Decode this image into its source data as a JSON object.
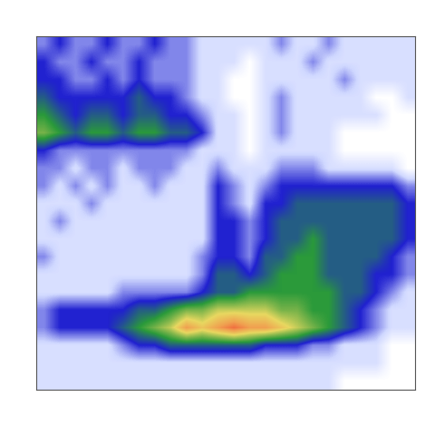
{
  "chart_data": {
    "type": "heatmap",
    "tick_labels": false,
    "cells": [
      [
        2,
        3,
        2,
        2,
        3,
        2,
        2,
        3,
        2,
        2,
        1,
        1,
        1,
        1,
        1,
        2,
        1,
        1,
        2,
        1,
        1,
        1,
        1,
        1
      ],
      [
        3,
        2,
        2,
        3,
        2,
        2,
        3,
        2,
        2,
        2,
        1,
        1,
        1,
        0,
        1,
        1,
        1,
        2,
        1,
        1,
        1,
        1,
        1,
        1
      ],
      [
        3,
        3,
        2,
        2,
        3,
        2,
        3,
        2,
        2,
        2,
        1,
        1,
        0,
        0,
        1,
        1,
        1,
        1,
        1,
        2,
        1,
        1,
        1,
        1
      ],
      [
        4,
        3,
        3,
        3,
        3,
        3,
        4,
        3,
        3,
        2,
        1,
        1,
        0,
        0,
        1,
        2,
        1,
        1,
        1,
        1,
        1,
        0,
        0,
        1
      ],
      [
        5,
        4,
        3,
        4,
        4,
        3,
        4,
        4,
        3,
        3,
        2,
        1,
        1,
        0,
        1,
        2,
        1,
        1,
        1,
        1,
        1,
        1,
        0,
        0
      ],
      [
        6,
        5,
        4,
        5,
        5,
        4,
        5,
        5,
        4,
        4,
        3,
        1,
        1,
        0,
        1,
        2,
        1,
        1,
        1,
        0,
        0,
        0,
        0,
        0
      ],
      [
        3,
        2,
        2,
        2,
        2,
        2,
        2,
        2,
        2,
        2,
        1,
        1,
        1,
        0,
        1,
        1,
        1,
        1,
        1,
        0,
        0,
        0,
        0,
        0
      ],
      [
        2,
        2,
        1,
        2,
        2,
        1,
        2,
        2,
        2,
        1,
        1,
        2,
        1,
        1,
        1,
        2,
        2,
        2,
        1,
        1,
        1,
        1,
        1,
        0
      ],
      [
        2,
        1,
        2,
        1,
        2,
        1,
        1,
        2,
        1,
        1,
        1,
        3,
        2,
        1,
        2,
        3,
        3,
        3,
        3,
        3,
        3,
        3,
        3,
        2
      ],
      [
        1,
        1,
        1,
        2,
        1,
        1,
        1,
        1,
        1,
        1,
        1,
        3,
        2,
        1,
        3,
        3,
        4,
        4,
        4,
        4,
        4,
        4,
        4,
        3
      ],
      [
        1,
        2,
        1,
        1,
        1,
        1,
        1,
        1,
        1,
        1,
        1,
        3,
        3,
        2,
        3,
        4,
        4,
        4,
        4,
        4,
        4,
        4,
        4,
        3
      ],
      [
        1,
        1,
        1,
        1,
        1,
        1,
        1,
        1,
        1,
        1,
        1,
        3,
        3,
        2,
        3,
        4,
        4,
        5,
        4,
        4,
        4,
        4,
        4,
        3
      ],
      [
        2,
        1,
        1,
        1,
        1,
        1,
        1,
        1,
        1,
        1,
        2,
        3,
        3,
        2,
        4,
        4,
        5,
        5,
        4,
        4,
        4,
        4,
        3,
        2
      ],
      [
        1,
        1,
        1,
        1,
        1,
        1,
        1,
        1,
        1,
        1,
        2,
        4,
        4,
        3,
        4,
        5,
        5,
        5,
        4,
        4,
        4,
        3,
        3,
        2
      ],
      [
        1,
        1,
        1,
        1,
        1,
        2,
        2,
        2,
        2,
        2,
        3,
        4,
        4,
        5,
        5,
        5,
        5,
        5,
        5,
        4,
        4,
        3,
        2,
        1
      ],
      [
        2,
        3,
        3,
        3,
        3,
        3,
        4,
        4,
        5,
        6,
        6,
        7,
        7,
        7,
        7,
        6,
        6,
        5,
        5,
        4,
        3,
        2,
        1,
        1
      ],
      [
        2,
        3,
        3,
        3,
        3,
        4,
        5,
        6,
        7,
        9,
        8,
        9,
        10,
        9,
        9,
        8,
        7,
        6,
        5,
        4,
        3,
        2,
        1,
        1
      ],
      [
        1,
        1,
        1,
        1,
        1,
        2,
        3,
        3,
        4,
        4,
        4,
        4,
        4,
        4,
        3,
        3,
        3,
        2,
        2,
        1,
        1,
        1,
        0,
        0
      ],
      [
        1,
        1,
        1,
        1,
        1,
        1,
        1,
        1,
        1,
        1,
        1,
        1,
        1,
        1,
        1,
        1,
        1,
        1,
        1,
        1,
        1,
        1,
        0,
        0
      ],
      [
        1,
        1,
        1,
        1,
        1,
        1,
        1,
        1,
        1,
        1,
        1,
        1,
        1,
        1,
        1,
        1,
        1,
        1,
        1,
        0,
        0,
        0,
        0,
        0
      ]
    ]
  }
}
